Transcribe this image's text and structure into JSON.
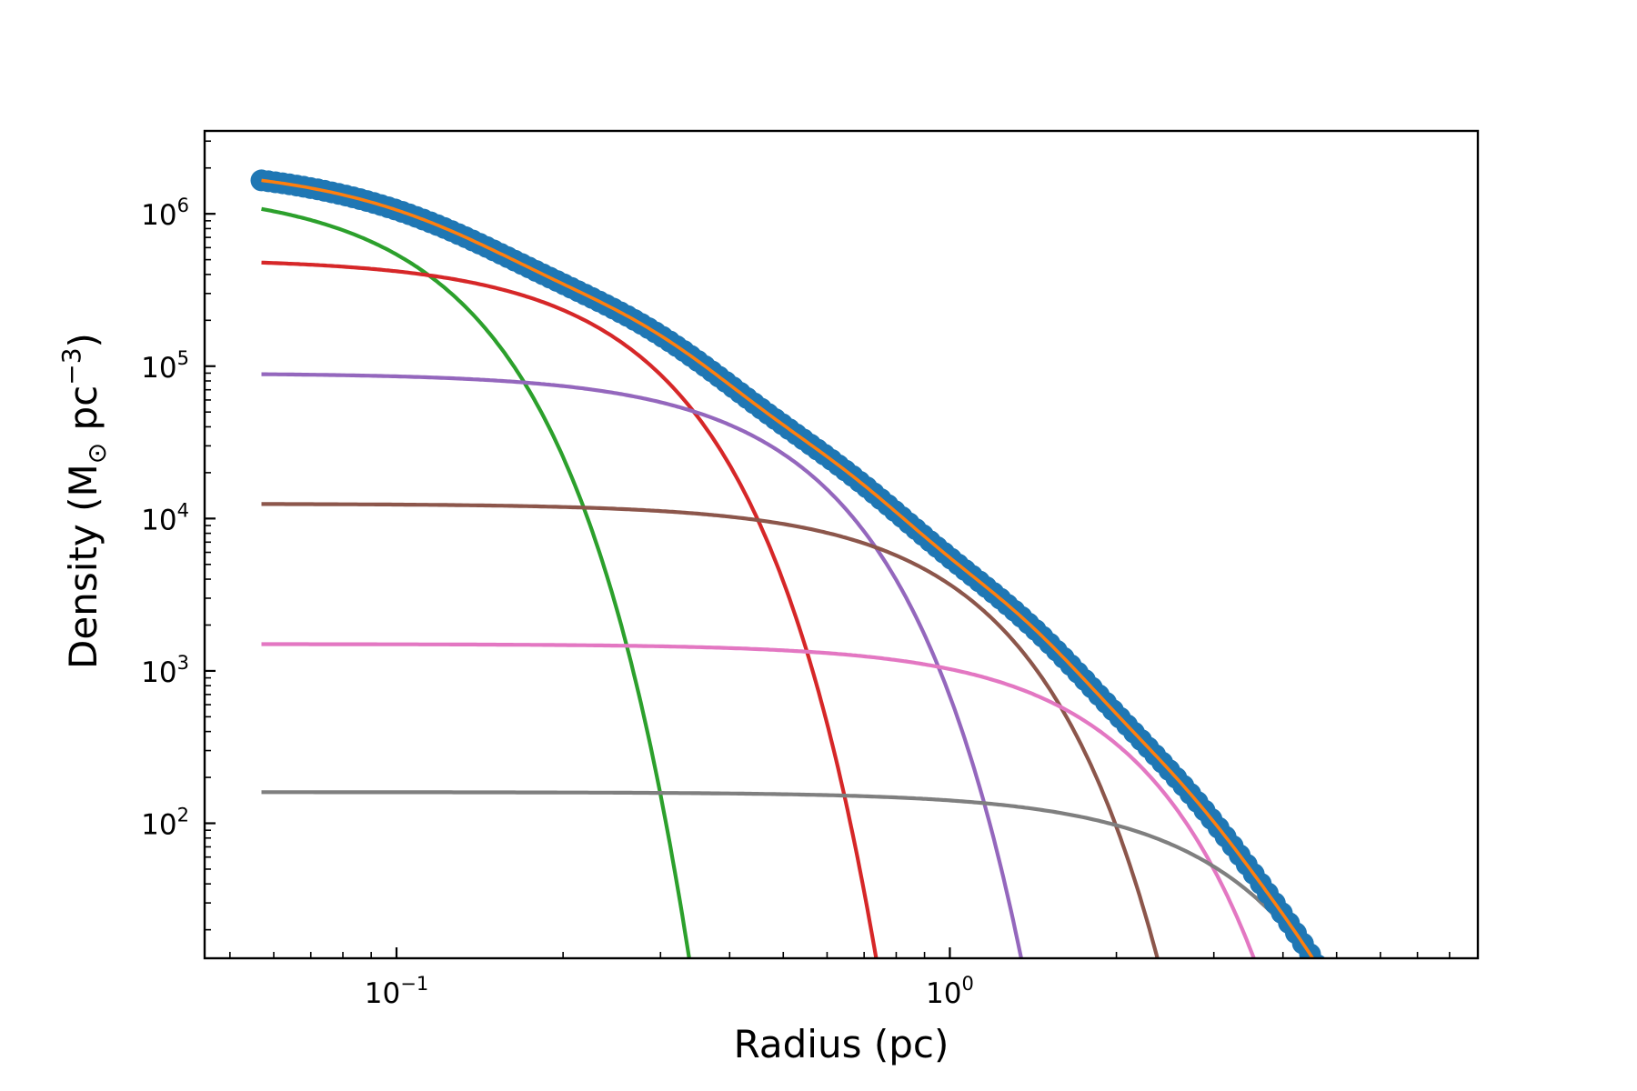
{
  "chart_data": {
    "type": "line",
    "title": "",
    "xlabel": "Radius (pc)",
    "ylabel": {
      "prefix": "Density (M",
      "sub": "⊙",
      "mid": " pc",
      "sup": "−3",
      "suffix": ")"
    },
    "x_scale": "log",
    "y_scale": "log",
    "xlim": [
      0.045,
      9.0
    ],
    "ylim": [
      13,
      3500000
    ],
    "x_ticks": [
      {
        "value": 0.1,
        "base": "10",
        "exp": "−1"
      },
      {
        "value": 1,
        "base": "10",
        "exp": "0"
      }
    ],
    "y_ticks": [
      {
        "value": 100,
        "base": "10",
        "exp": "2"
      },
      {
        "value": 1000,
        "base": "10",
        "exp": "3"
      },
      {
        "value": 10000,
        "base": "10",
        "exp": "4"
      },
      {
        "value": 100000,
        "base": "10",
        "exp": "5"
      },
      {
        "value": 1000000,
        "base": "10",
        "exp": "6"
      }
    ],
    "grid": false,
    "data_points": {
      "color": "#1f77b4",
      "x_range": [
        0.057,
        6.0
      ],
      "count": 160,
      "note": "sum of components"
    },
    "total_fit": {
      "color": "#ff7f0e"
    },
    "series": [
      {
        "color": "#2ca02c",
        "peak": 1500000,
        "sigma": 0.07
      },
      {
        "color": "#d62728",
        "peak": 510000,
        "sigma": 0.16
      },
      {
        "color": "#9467bd",
        "peak": 90000,
        "sigma": 0.32
      },
      {
        "color": "#8c564b",
        "peak": 12500,
        "sigma": 0.64
      },
      {
        "color": "#e377c2",
        "peak": 1500,
        "sigma": 1.15
      },
      {
        "color": "#7f7f7f",
        "peak": 160,
        "sigma": 2.0
      }
    ],
    "components_x_start": 0.057
  }
}
